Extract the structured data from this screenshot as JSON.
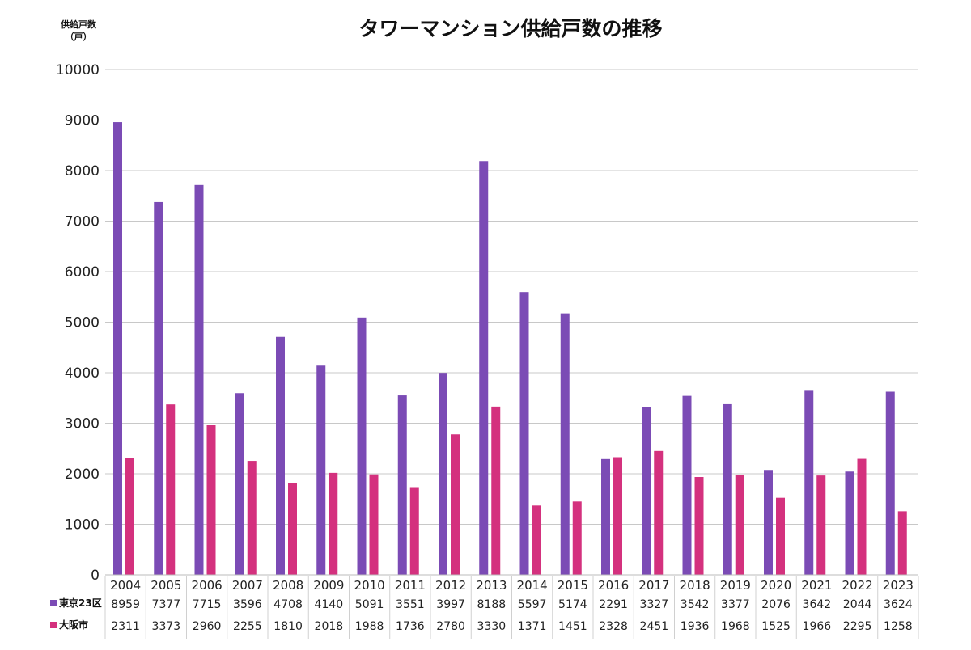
{
  "chart_data": {
    "type": "bar",
    "title": "タワーマンション供給戸数の推移",
    "ylabel": "供給戸数",
    "yunit": "（戸）",
    "ylim": [
      0,
      10000
    ],
    "yticks": [
      0,
      1000,
      2000,
      3000,
      4000,
      5000,
      6000,
      7000,
      8000,
      9000,
      10000
    ],
    "grid": true,
    "legend": "in-table-left",
    "categories": [
      "2004",
      "2005",
      "2006",
      "2007",
      "2008",
      "2009",
      "2010",
      "2011",
      "2012",
      "2013",
      "2014",
      "2015",
      "2016",
      "2017",
      "2018",
      "2019",
      "2020",
      "2021",
      "2022",
      "2023"
    ],
    "series": [
      {
        "name": "東京23区",
        "color": "#7b4bb5",
        "values": [
          8959,
          7377,
          7715,
          3596,
          4708,
          4140,
          5091,
          3551,
          3997,
          8188,
          5597,
          5174,
          2291,
          3327,
          3542,
          3377,
          2076,
          3642,
          2044,
          3624
        ]
      },
      {
        "name": "大阪市",
        "color": "#d4317e",
        "values": [
          2311,
          3373,
          2960,
          2255,
          1810,
          2018,
          1988,
          1736,
          2780,
          3330,
          1371,
          1451,
          2328,
          2451,
          1936,
          1968,
          1525,
          1966,
          2295,
          1258
        ]
      }
    ]
  }
}
